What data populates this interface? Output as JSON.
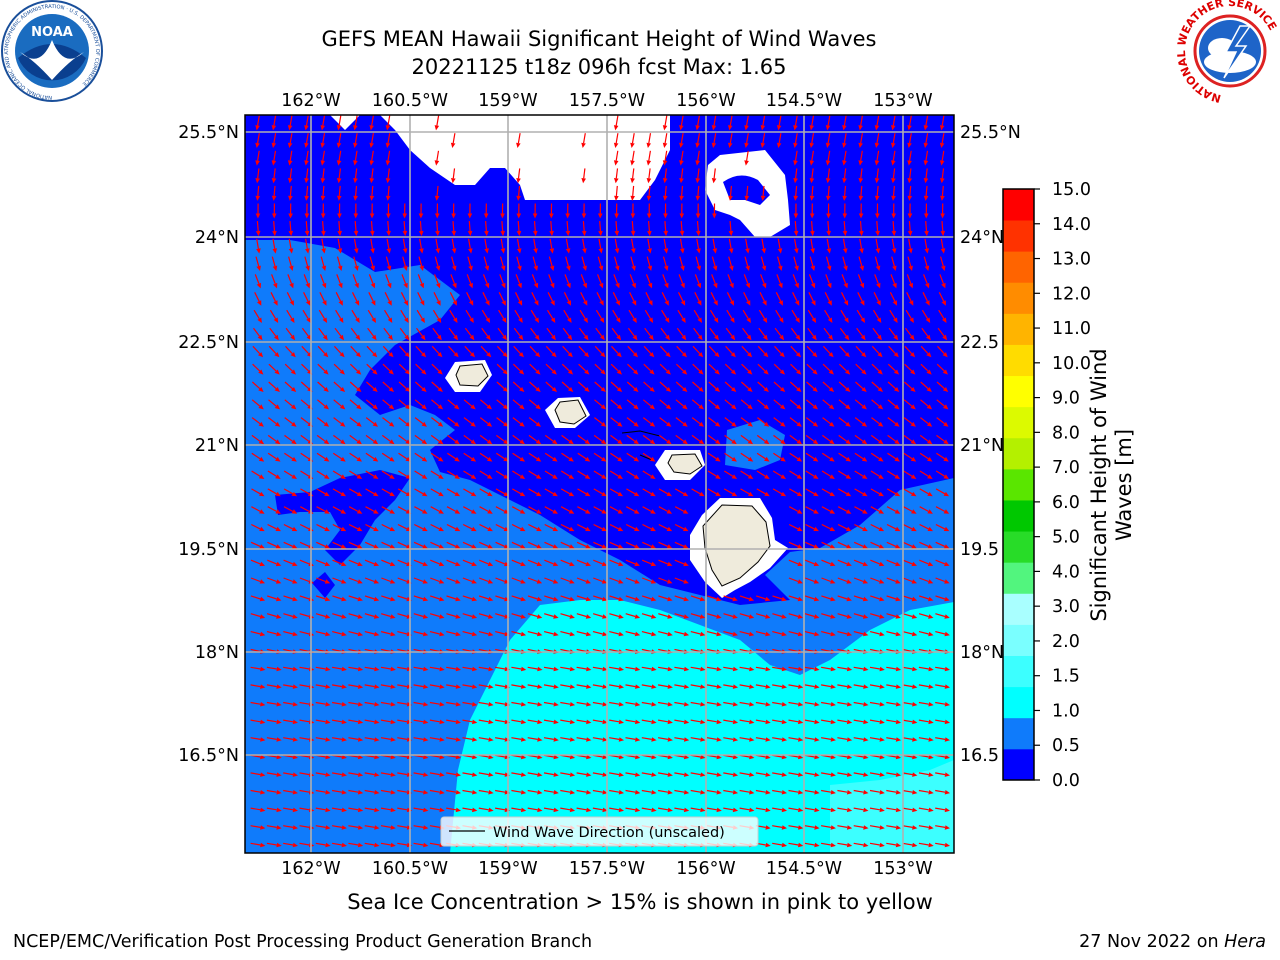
{
  "title": {
    "line1": "GEFS MEAN Hawaii Significant Height of Wind Waves",
    "line2": "20221125 t18z 096h fcst   Max: 1.65"
  },
  "map": {
    "lon_ticks": [
      "162°W",
      "160.5°W",
      "159°W",
      "157.5°W",
      "156°W",
      "154.5°W",
      "153°W"
    ],
    "lat_ticks": [
      "25.5°N",
      "24°N",
      "22.5°N",
      "21°N",
      "19.5°N",
      "18°N",
      "16.5°N"
    ],
    "right_lat_ticks": [
      "25.5°N",
      "24°N",
      "22.5",
      "21°N",
      "19.5",
      "18°N",
      "16.5"
    ],
    "legend_label": "Wind Wave Direction (unscaled)",
    "arrow_color": "#ff0000",
    "land_color": "#efebdc",
    "grid_color": "#b0b0b0"
  },
  "colorbar": {
    "label_line1": "Significant Height of Wind",
    "label_line2": "Waves [m]",
    "ticks": [
      "0.0",
      "0.5",
      "1.0",
      "1.5",
      "2.0",
      "3.0",
      "4.0",
      "5.0",
      "6.0",
      "7.0",
      "8.0",
      "9.0",
      "10.0",
      "11.0",
      "12.0",
      "13.0",
      "14.0",
      "15.0"
    ],
    "colors": [
      "#0000ff",
      "#0f7bfb",
      "#00ffff",
      "#3cffff",
      "#7affff",
      "#a9ffff",
      "#52f57e",
      "#28dc28",
      "#00c800",
      "#5ae600",
      "#b4f000",
      "#dcfa00",
      "#ffff00",
      "#ffdc00",
      "#ffb400",
      "#ff8c00",
      "#ff6400",
      "#ff3200",
      "#ff0000"
    ]
  },
  "logos": {
    "noaa_text": "NOAA",
    "noaa_ring": "NATIONAL OCEANIC AND ATMOSPHERIC ADMINISTRATION · U.S. DEPARTMENT OF COMMERCE",
    "nws_ring": "NATIONAL WEATHER SERVICE"
  },
  "footer": {
    "ice_note": "Sea Ice Concentration > 15% is shown in pink to yellow",
    "left": "NCEP/EMC/Verification Post Processing Product Generation Branch",
    "right_date": "27 Nov 2022 on",
    "right_host": "Hera"
  }
}
